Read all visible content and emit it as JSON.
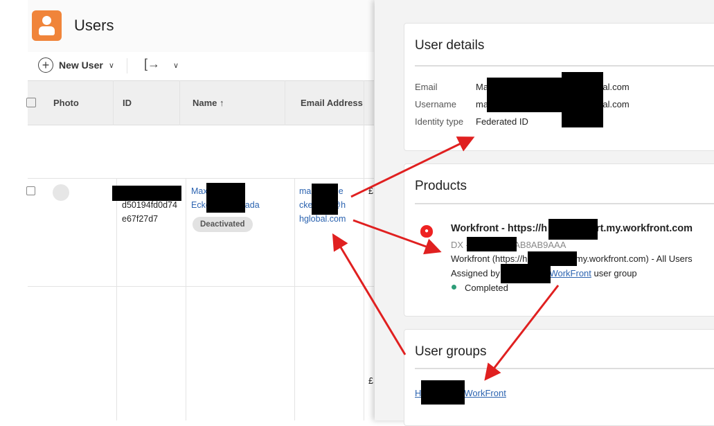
{
  "header": {
    "title": "Users",
    "icon": "user-icon",
    "accent": "#f0843a"
  },
  "toolbar": {
    "new_user": "New User"
  },
  "table": {
    "columns": [
      "Photo",
      "ID",
      "Name ↑",
      "Email Address"
    ],
    "row": {
      "id_lines": [
        "d50194fd0d74",
        "e67f27d7"
      ],
      "name_lines": [
        "Max",
        "Ecke",
        "ada"
      ],
      "status": "Deactivated",
      "email_lines": [
        "ma",
        "ne.e",
        "cke",
        "@h",
        "hglobal.com"
      ],
      "extra": [
        "£",
        "£"
      ]
    }
  },
  "panel": {
    "user_details": {
      "title": "User details",
      "fields": [
        {
          "label": "Email",
          "value": "Ma",
          "value_end": "lobal.com"
        },
        {
          "label": "Username",
          "value": "ma",
          "value_end": "lobal.com"
        },
        {
          "label": "Identity type",
          "value": "Federated ID"
        }
      ]
    },
    "products": {
      "title": "Products",
      "product_name": "Workfront - https://h",
      "product_name_end": "ort.my.workfront.com",
      "product_code": "DX -",
      "product_code_end": "8AB8AB9AAA",
      "profile": "Workfront (https://h",
      "profile_end": ".my.workfront.com) - All Users",
      "assigned_prefix": "Assigned by",
      "assigned_link": "WorkFront",
      "assigned_suffix": "user group",
      "status": "Completed",
      "status_color": "#2d9d78"
    },
    "user_groups": {
      "title": "User groups",
      "group_start": "H",
      "group_end": "WorkFront"
    }
  },
  "annotation_color": "#e02020"
}
